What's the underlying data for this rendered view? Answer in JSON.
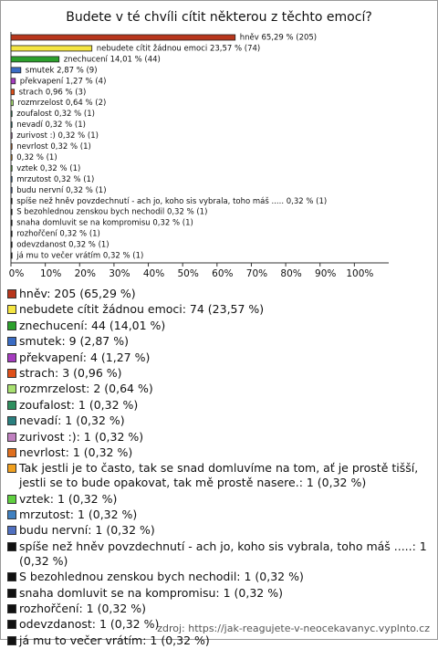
{
  "chart_data": {
    "type": "bar",
    "orientation": "horizontal",
    "title": "Budete v té chvíli cítit některou z těchto emocí?",
    "values": [
      65.29,
      23.57,
      14.01,
      2.87,
      1.27,
      0.96,
      0.64,
      0.32,
      0.32,
      0.32,
      0.32,
      0.32,
      0.32,
      0.32,
      0.32,
      0.32,
      0.32,
      0.32,
      0.32,
      0.32,
      0.32
    ],
    "value_labels": [
      "hněv 65,29 % (205)",
      "nebudete cítit žádnou emoci 23,57 % (74)",
      "znechucení 14,01 % (44)",
      "smutek 2,87 % (9)",
      "překvapení 1,27 % (4)",
      "strach 0,96 % (3)",
      "rozmrzelost 0,64 % (2)",
      "zoufalost 0,32 % (1)",
      "nevadí 0,32 % (1)",
      "zurivost :) 0,32 % (1)",
      "nevrlost 0,32 % (1)",
      "0,32 % (1)",
      "vztek 0,32 % (1)",
      "mrzutost 0,32 % (1)",
      "budu nervní 0,32 % (1)",
      "spíše než hněv povzdechnutí - ach jo, koho sis vybrala, toho máš ..... 0,32 % (1)",
      "S bezohlednou zenskou bych nechodil 0,32 % (1)",
      "snaha domluvit se na kompromisu 0,32 % (1)",
      "rozhořčení 0,32 % (1)",
      "odevzdanost 0,32 % (1)",
      "já mu to večer vrátím 0,32 % (1)"
    ],
    "colors": [
      "#b8361c",
      "#f4e542",
      "#2ca02c",
      "#3a6cc4",
      "#a63cc0",
      "#e0501a",
      "#a8e070",
      "#2f8f5f",
      "#2a7f7f",
      "#c080c0",
      "#e07020",
      "#f0a020",
      "#60d040",
      "#4080c0",
      "#5070c0",
      "#111111",
      "#111111",
      "#111111",
      "#111111",
      "#111111",
      "#111111"
    ],
    "legend": [
      "hněv: 205 (65,29 %)",
      "nebudete cítit žádnou emoci: 74 (23,57 %)",
      "znechucení: 44 (14,01 %)",
      "smutek: 9 (2,87 %)",
      "překvapení: 4 (1,27 %)",
      "strach: 3 (0,96 %)",
      "rozmrzelost: 2 (0,64 %)",
      "zoufalost: 1 (0,32 %)",
      "nevadí: 1 (0,32 %)",
      "zurivost :): 1 (0,32 %)",
      "nevrlost: 1 (0,32 %)",
      "Tak jestli je to často, tak se snad domluvíme na tom, ať je prostě tišší, jestli se to bude opakovat, tak mě prostě nasere.: 1 (0,32 %)",
      "vztek: 1 (0,32 %)",
      "mrzutost: 1 (0,32 %)",
      "budu nervní: 1 (0,32 %)",
      "spíše než hněv povzdechnutí - ach jo, koho sis vybrala, toho máš .....: 1 (0,32 %)",
      "S bezohlednou zenskou bych nechodil: 1 (0,32 %)",
      "snaha domluvit se na kompromisu: 1 (0,32 %)",
      "rozhořčení: 1 (0,32 %)",
      "odevzdanost: 1 (0,32 %)",
      "já mu to večer vrátím: 1 (0,32 %)"
    ],
    "xlim": [
      0,
      110
    ],
    "xticks": [
      {
        "value": 0,
        "label": "0%"
      },
      {
        "value": 10,
        "label": "10%"
      },
      {
        "value": 20,
        "label": "20%"
      },
      {
        "value": 30,
        "label": "30%"
      },
      {
        "value": 40,
        "label": "40%"
      },
      {
        "value": 50,
        "label": "50%"
      },
      {
        "value": 60,
        "label": "60%"
      },
      {
        "value": 70,
        "label": "70%"
      },
      {
        "value": 80,
        "label": "80%"
      },
      {
        "value": 90,
        "label": "90%"
      },
      {
        "value": 100,
        "label": "100%"
      }
    ],
    "source": "zdroj: https://jak-reagujete-v-neocekavanyc.vyplnto.cz"
  }
}
